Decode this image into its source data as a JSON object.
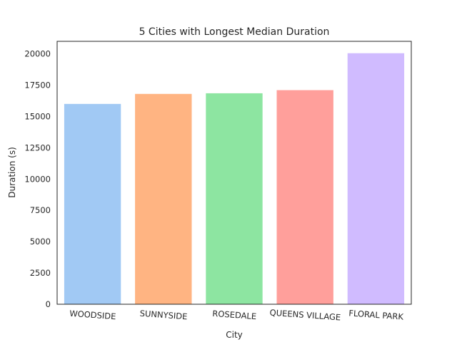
{
  "chart_data": {
    "type": "bar",
    "title": "5 Cities with Longest Median Duration",
    "xlabel": "City",
    "ylabel": "Duration (s)",
    "categories": [
      "WOODSIDE",
      "SUNNYSIDE",
      "ROSEDALE",
      "QUEENS VILLAGE",
      "FLORAL PARK"
    ],
    "values": [
      16000,
      16800,
      16850,
      17100,
      20050
    ],
    "colors": [
      "#a1c9f4",
      "#ffb482",
      "#8de5a1",
      "#ff9f9b",
      "#d0bbff"
    ],
    "ylim": [
      0,
      21000
    ],
    "yticks": [
      0,
      2500,
      5000,
      7500,
      10000,
      12500,
      15000,
      17500,
      20000
    ],
    "grid": false,
    "legend": "none"
  }
}
